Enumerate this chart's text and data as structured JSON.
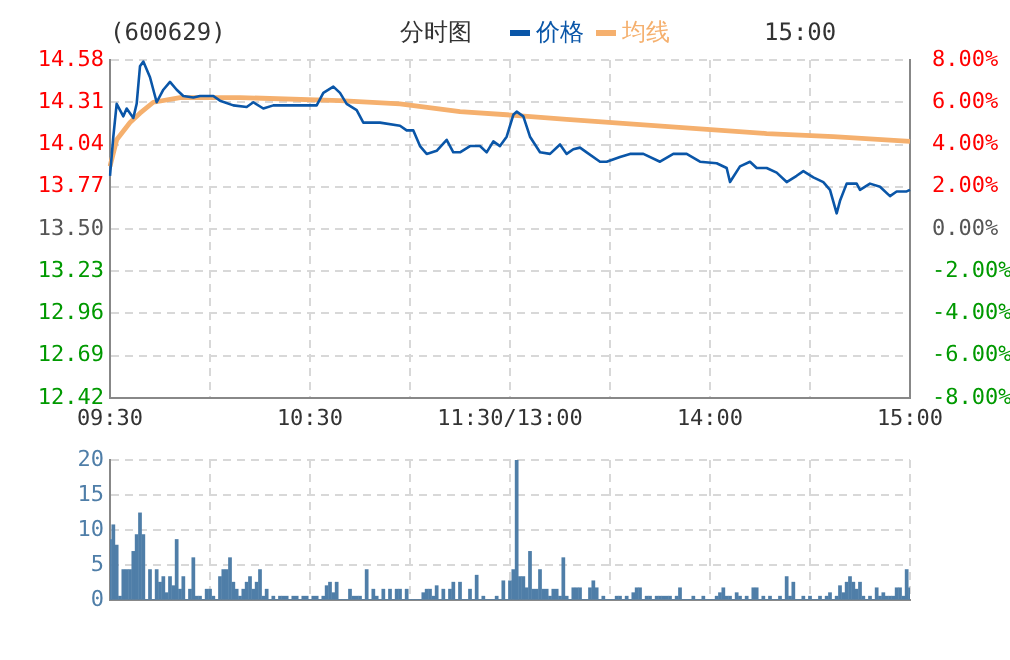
{
  "chart_data": [
    {
      "type": "line",
      "title": "(600629)",
      "subtitle": "分时图",
      "annotations": [
        "15:00"
      ],
      "legend": "top",
      "marker": "none",
      "grid": true,
      "categories": [
        "09:30",
        null,
        null,
        null,
        null,
        null,
        null,
        null,
        null,
        null,
        null,
        null,
        null,
        null,
        null,
        null,
        null,
        null,
        null,
        null,
        null,
        null,
        null,
        null,
        null,
        null,
        null,
        null,
        null,
        null,
        null,
        null,
        null,
        null,
        null,
        null,
        null,
        null,
        null,
        null,
        null,
        null,
        null,
        null,
        null,
        null,
        null,
        null,
        null,
        null,
        null,
        null,
        null,
        null,
        null,
        null,
        null,
        null,
        null,
        null,
        "10:30",
        null,
        null,
        null,
        null,
        null,
        null,
        null,
        null,
        null,
        null,
        null,
        null,
        null,
        null,
        null,
        null,
        null,
        null,
        null,
        null,
        null,
        null,
        null,
        null,
        null,
        null,
        null,
        null,
        null,
        null,
        null,
        null,
        null,
        null,
        null,
        null,
        null,
        null,
        null,
        null,
        null,
        null,
        null,
        null,
        null,
        null,
        null,
        null,
        null,
        null,
        null,
        null,
        null,
        null,
        null,
        null,
        null,
        null,
        null,
        "11:30/13:00",
        null,
        null,
        null,
        null,
        null,
        null,
        null,
        null,
        null,
        null,
        null,
        null,
        null,
        null,
        null,
        null,
        null,
        null,
        null,
        null,
        null,
        null,
        null,
        null,
        null,
        null,
        null,
        null,
        null,
        null,
        null,
        null,
        null,
        null,
        null,
        null,
        null,
        null,
        null,
        null,
        null,
        null,
        null,
        null,
        null,
        null,
        null,
        null,
        null,
        null,
        null,
        null,
        null,
        null,
        null,
        null,
        null,
        null,
        null,
        "14:00",
        null,
        null,
        null,
        null,
        null,
        null,
        null,
        null,
        null,
        null,
        null,
        null,
        null,
        null,
        null,
        null,
        null,
        null,
        null,
        null,
        null,
        null,
        null,
        null,
        null,
        null,
        null,
        null,
        null,
        null,
        null,
        null,
        null,
        null,
        null,
        null,
        null,
        null,
        null,
        null,
        null,
        null,
        null,
        null,
        null,
        null,
        null,
        null,
        null,
        null,
        null,
        null,
        null,
        null,
        null,
        null,
        null,
        null,
        null,
        "15:00"
      ],
      "series": [
        {
          "name": "价格",
          "color": "#0a56a8",
          "values": [
            13.84,
            14.09,
            14.3,
            null,
            14.22,
            14.27,
            null,
            14.21,
            14.3,
            14.54,
            14.57,
            null,
            14.47,
            null,
            14.31,
            null,
            14.39,
            null,
            14.44,
            null,
            14.39,
            null,
            14.35,
            null,
            null,
            14.34,
            null,
            14.35,
            null,
            null,
            null,
            14.35,
            null,
            14.32,
            null,
            null,
            null,
            14.29,
            null,
            null,
            null,
            14.28,
            null,
            14.31,
            null,
            null,
            14.27,
            null,
            null,
            14.29,
            null,
            null,
            null,
            null,
            null,
            14.29,
            null,
            null,
            null,
            null,
            null,
            null,
            14.29,
            null,
            14.37,
            null,
            null,
            14.41,
            null,
            14.37,
            null,
            14.3,
            null,
            null,
            14.26,
            null,
            14.18,
            null,
            null,
            null,
            null,
            14.18,
            null,
            null,
            null,
            null,
            null,
            14.16,
            null,
            14.13,
            null,
            14.13,
            null,
            14.03,
            null,
            13.98,
            null,
            null,
            14.0,
            null,
            null,
            14.07,
            null,
            13.99,
            null,
            13.99,
            null,
            null,
            14.03,
            null,
            null,
            14.03,
            null,
            13.99,
            null,
            14.06,
            null,
            14.03,
            null,
            14.09,
            null,
            14.23,
            14.25,
            null,
            14.22,
            null,
            14.09,
            null,
            null,
            13.99,
            null,
            null,
            13.98,
            null,
            null,
            14.04,
            null,
            13.98,
            null,
            14.01,
            null,
            14.02,
            null,
            13.99,
            null,
            null,
            null,
            13.93,
            null,
            13.93,
            null,
            null,
            null,
            13.96,
            null,
            null,
            13.98,
            null,
            null,
            null,
            13.98,
            null,
            null,
            null,
            null,
            13.93,
            null,
            null,
            null,
            13.98,
            null,
            null,
            null,
            13.98,
            null,
            null,
            null,
            13.93,
            null,
            null,
            null,
            null,
            13.92,
            null,
            null,
            13.89,
            13.8,
            null,
            null,
            13.9,
            null,
            null,
            13.93,
            null,
            13.89,
            null,
            null,
            13.89,
            null,
            null,
            13.86,
            null,
            null,
            13.8,
            null,
            null,
            13.84,
            null,
            13.87,
            null,
            null,
            13.83,
            null,
            null,
            13.8,
            null,
            13.75,
            null,
            13.6,
            13.68,
            null,
            13.79,
            null,
            null,
            13.79,
            13.75,
            null,
            null,
            13.79,
            null,
            null,
            13.77,
            null,
            null,
            13.71,
            null,
            13.74,
            null,
            null,
            13.74,
            13.75
          ]
        },
        {
          "name": "均线",
          "color": "#f5b06e",
          "values": [
            13.9,
            null,
            14.07,
            null,
            null,
            null,
            14.18,
            null,
            null,
            14.24,
            null,
            null,
            null,
            14.31,
            null,
            null,
            null,
            null,
            null,
            null,
            null,
            14.34,
            null,
            null,
            null,
            null,
            null,
            null,
            null,
            null,
            null,
            null,
            null,
            null,
            null,
            null,
            null,
            null,
            null,
            14.34,
            null,
            null,
            null,
            null,
            null,
            null,
            null,
            null,
            null,
            null,
            null,
            null,
            null,
            null,
            null,
            null,
            null,
            null,
            null,
            null,
            null,
            null,
            null,
            null,
            null,
            null,
            null,
            null,
            null,
            14.32,
            null,
            null,
            null,
            null,
            null,
            null,
            null,
            null,
            null,
            null,
            null,
            null,
            null,
            null,
            null,
            null,
            null,
            14.3,
            null,
            null,
            null,
            null,
            null,
            null,
            null,
            null,
            null,
            null,
            null,
            null,
            null,
            null,
            null,
            null,
            null,
            14.25,
            null,
            null,
            null,
            null,
            null,
            null,
            null,
            null,
            null,
            null,
            null,
            null,
            null,
            14.23,
            null,
            null,
            null,
            null,
            null,
            null,
            null,
            null,
            null,
            null,
            null,
            null,
            null,
            null,
            null,
            null,
            null,
            14.2,
            null,
            null,
            null,
            null,
            null,
            null,
            null,
            null,
            null,
            null,
            null,
            null,
            null,
            null,
            null,
            null,
            null,
            null,
            null,
            14.17,
            null,
            null,
            null,
            null,
            null,
            null,
            null,
            null,
            null,
            null,
            null,
            null,
            null,
            null,
            null,
            null,
            null,
            null,
            null,
            14.14,
            null,
            null,
            null,
            null,
            null,
            null,
            null,
            null,
            null,
            null,
            null,
            null,
            null,
            null,
            null,
            null,
            null,
            null,
            null,
            14.11,
            null,
            null,
            null,
            null,
            null,
            null,
            null,
            null,
            null,
            null,
            null,
            null,
            null,
            null,
            null,
            null,
            null,
            null,
            null,
            14.09,
            null,
            null,
            null,
            null,
            null,
            null,
            null,
            null,
            null,
            null,
            null,
            null,
            null,
            null,
            null,
            null,
            null,
            null,
            null,
            null,
            null,
            null,
            14.06
          ]
        }
      ],
      "ylim": [
        12.42,
        14.58
      ],
      "yticks": [
        12.42,
        12.69,
        12.96,
        13.23,
        {
          "value": 13.5,
          "label": "13.50"
        },
        13.77,
        14.04,
        14.31,
        14.58
      ],
      "y2lim": [
        -8,
        8
      ],
      "y2ticks": [
        {
          "value": -8,
          "label": "-8.00%"
        },
        {
          "value": -6,
          "label": "-6.00%"
        },
        {
          "value": -4,
          "label": "-4.00%"
        },
        {
          "value": -2,
          "label": "-2.00%"
        },
        {
          "value": 0,
          "label": "0.00%"
        },
        {
          "value": 2,
          "label": "2.00%"
        },
        {
          "value": 4,
          "label": "4.00%"
        },
        {
          "value": 6,
          "label": "6.00%"
        },
        {
          "value": 8,
          "label": "8.00%"
        }
      ]
    },
    {
      "type": "bar",
      "color": "#4f7ea8",
      "grid": true,
      "tick_labels": "y",
      "categories": [
        null,
        null,
        null,
        null,
        null,
        null,
        null,
        null,
        null,
        null,
        null,
        null,
        null,
        null,
        null,
        null,
        null,
        null,
        null,
        null,
        null,
        null,
        null,
        null,
        null,
        null,
        null,
        null,
        null,
        null,
        null,
        null,
        null,
        null,
        null,
        null,
        null,
        null,
        null,
        null,
        null,
        null,
        null,
        null,
        null,
        null,
        null,
        null,
        null,
        null,
        null,
        null,
        null,
        null,
        null,
        null,
        null,
        null,
        null,
        null,
        null,
        null,
        null,
        null,
        null,
        null,
        null,
        null,
        null,
        null,
        null,
        null,
        null,
        null,
        null,
        null,
        null,
        null,
        null,
        null,
        null,
        null,
        null,
        null,
        null,
        null,
        null,
        null,
        null,
        null,
        null,
        null,
        null,
        null,
        null,
        null,
        null,
        null,
        null,
        null,
        null,
        null,
        null,
        null,
        null,
        null,
        null,
        null,
        null,
        null,
        null,
        null,
        null,
        null,
        null,
        null,
        null,
        null,
        null,
        null,
        null,
        null,
        null,
        null,
        null,
        null,
        null,
        null,
        null,
        null,
        null,
        null,
        null,
        null,
        null,
        null,
        null,
        null,
        null,
        null,
        null,
        null,
        null,
        null,
        null,
        null,
        null,
        null,
        null,
        null,
        null,
        null,
        null,
        null,
        null,
        null,
        null,
        null,
        null,
        null,
        null,
        null,
        null,
        null,
        null,
        null,
        null,
        null,
        null,
        null,
        null,
        null,
        null,
        null,
        null,
        null,
        null,
        null,
        null,
        null,
        null,
        null,
        null,
        null,
        null,
        null,
        null,
        null,
        null,
        null,
        null,
        null,
        null,
        null,
        null,
        null,
        null,
        null,
        null,
        null,
        null,
        null,
        null,
        null,
        null,
        null,
        null,
        null,
        null,
        null,
        null,
        null,
        null,
        null,
        null,
        null,
        null,
        null,
        null,
        null,
        null,
        null,
        null,
        null,
        null,
        null,
        null,
        null,
        null,
        null,
        null,
        null,
        null,
        null,
        null,
        null,
        null,
        null,
        null,
        null,
        null
      ],
      "values": [
        8.6,
        10.7,
        7.8,
        0.5,
        4.3,
        4.3,
        4.3,
        6.9,
        9.3,
        12.4,
        9.3,
        0,
        4.3,
        0,
        4.3,
        2.5,
        3.3,
        1,
        3.3,
        2,
        8.6,
        1.5,
        3.3,
        0,
        1.5,
        6,
        0.5,
        0.5,
        0,
        1.5,
        1.5,
        0.5,
        0,
        3.3,
        4.3,
        4.3,
        6,
        2.5,
        1.5,
        0.5,
        1.5,
        2.5,
        3.3,
        1.5,
        2.5,
        4.3,
        0.5,
        1.5,
        0,
        0.5,
        0,
        0.5,
        0.5,
        0.5,
        0,
        0.5,
        0.5,
        0,
        0.5,
        0.5,
        0,
        0.5,
        0.5,
        0,
        0.5,
        2,
        2.5,
        1,
        2.5,
        0,
        0,
        0,
        1.5,
        0.5,
        0.5,
        0.5,
        0,
        4.3,
        0,
        1.5,
        0.5,
        0,
        1.5,
        0,
        1.5,
        0,
        1.5,
        1.5,
        0,
        1.5,
        0,
        0,
        0,
        0,
        1,
        1.5,
        1.5,
        0.5,
        2,
        0,
        1.5,
        0,
        1.5,
        2.5,
        0,
        2.5,
        0,
        0,
        1.5,
        0,
        3.5,
        0,
        0.5,
        0,
        0,
        0,
        0.5,
        0,
        2.7,
        0,
        2.7,
        4.3,
        20,
        3.3,
        3.3,
        1.7,
        6.9,
        1.5,
        1.5,
        4.3,
        1.5,
        1.5,
        0.5,
        1.5,
        1.5,
        0.5,
        6,
        0.5,
        0,
        1.7,
        1.7,
        1.7,
        0,
        0,
        1.7,
        2.7,
        1.7,
        0,
        0.5,
        0,
        0,
        0,
        0.5,
        0.5,
        0,
        0.5,
        0,
        1,
        1.7,
        1.7,
        0,
        0.5,
        0.5,
        0,
        0.5,
        0.5,
        0.5,
        0.5,
        0.5,
        0,
        0.5,
        1.7,
        0,
        0,
        0,
        0.5,
        0,
        0,
        0.5,
        0,
        0,
        0,
        0.5,
        1,
        1.7,
        0.5,
        0.5,
        0,
        1,
        0.5,
        0,
        0.5,
        0,
        1.7,
        1.7,
        0,
        0.5,
        0,
        0.5,
        0,
        0,
        0.5,
        0,
        3.3,
        0.5,
        2.5,
        0,
        0,
        0.5,
        0,
        0.5,
        0,
        0,
        0.5,
        0,
        0.5,
        1,
        0,
        0.5,
        2,
        1,
        2.5,
        3.3,
        2.5,
        1.5,
        2.5,
        0.5,
        0,
        0.5,
        0,
        1.7,
        0.5,
        1,
        0.5,
        0.5,
        0.5,
        1.7,
        1.7,
        0.5,
        4.3,
        1.7
      ],
      "ylim": [
        0,
        20
      ],
      "yticks": [
        0,
        5,
        10,
        15,
        20
      ]
    }
  ]
}
